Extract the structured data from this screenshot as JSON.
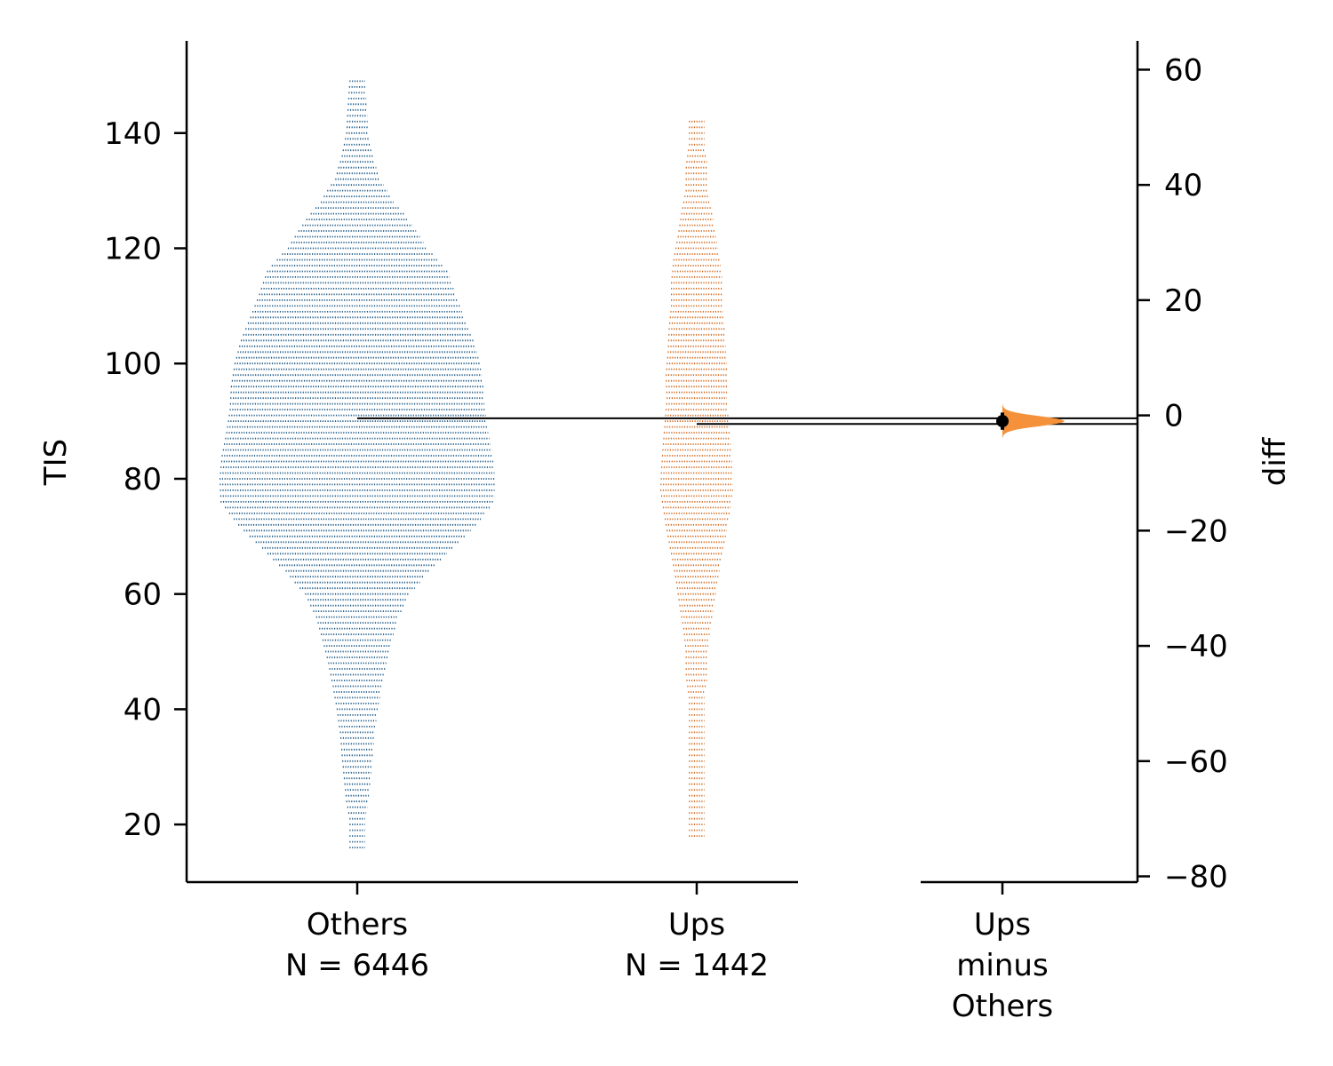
{
  "chart_data": {
    "type": "scatter",
    "subtype": "estimation-swarm",
    "title": "",
    "ylabel": "TIS",
    "y2label": "diff",
    "ylim": [
      10,
      156
    ],
    "y2lim": [
      -81,
      65
    ],
    "yticks": [
      20,
      40,
      60,
      80,
      100,
      120,
      140
    ],
    "y2ticks": [
      -80,
      -60,
      -40,
      -20,
      0,
      20,
      40,
      60
    ],
    "grid": false,
    "legend": "none",
    "groups": [
      {
        "name": "Others",
        "label_lines": [
          "Others",
          "N = 6446"
        ],
        "n": 6446,
        "color": "#1f5a87",
        "mean": 90.5,
        "min": 16,
        "max": 149,
        "distribution": [
          {
            "y": 16,
            "count": 1
          },
          {
            "y": 18,
            "count": 1
          },
          {
            "y": 21,
            "count": 1
          },
          {
            "y": 24,
            "count": 2
          },
          {
            "y": 28,
            "count": 3
          },
          {
            "y": 32,
            "count": 4
          },
          {
            "y": 36,
            "count": 5
          },
          {
            "y": 40,
            "count": 7
          },
          {
            "y": 44,
            "count": 10
          },
          {
            "y": 48,
            "count": 14
          },
          {
            "y": 52,
            "count": 20
          },
          {
            "y": 56,
            "count": 28
          },
          {
            "y": 60,
            "count": 45
          },
          {
            "y": 64,
            "count": 85
          },
          {
            "y": 68,
            "count": 150
          },
          {
            "y": 72,
            "count": 235
          },
          {
            "y": 76,
            "count": 310
          },
          {
            "y": 80,
            "count": 315
          },
          {
            "y": 84,
            "count": 305
          },
          {
            "y": 88,
            "count": 285
          },
          {
            "y": 92,
            "count": 270
          },
          {
            "y": 96,
            "count": 265
          },
          {
            "y": 100,
            "count": 250
          },
          {
            "y": 104,
            "count": 225
          },
          {
            "y": 108,
            "count": 190
          },
          {
            "y": 112,
            "count": 160
          },
          {
            "y": 116,
            "count": 135
          },
          {
            "y": 120,
            "count": 80
          },
          {
            "y": 124,
            "count": 50
          },
          {
            "y": 128,
            "count": 22
          },
          {
            "y": 132,
            "count": 8
          },
          {
            "y": 136,
            "count": 4
          },
          {
            "y": 140,
            "count": 2
          },
          {
            "y": 149,
            "count": 1
          }
        ]
      },
      {
        "name": "Ups",
        "label_lines": [
          "Ups",
          "N = 1442"
        ],
        "n": 1442,
        "color": "#d2691e",
        "mean": 89.5,
        "min": 18,
        "max": 142,
        "distribution": [
          {
            "y": 18,
            "count": 1
          },
          {
            "y": 20,
            "count": 1
          },
          {
            "y": 30,
            "count": 1
          },
          {
            "y": 34,
            "count": 1
          },
          {
            "y": 38,
            "count": 1
          },
          {
            "y": 42,
            "count": 1
          },
          {
            "y": 46,
            "count": 2
          },
          {
            "y": 50,
            "count": 2
          },
          {
            "y": 54,
            "count": 3
          },
          {
            "y": 58,
            "count": 5
          },
          {
            "y": 62,
            "count": 7
          },
          {
            "y": 66,
            "count": 10
          },
          {
            "y": 70,
            "count": 14
          },
          {
            "y": 74,
            "count": 18
          },
          {
            "y": 78,
            "count": 22
          },
          {
            "y": 82,
            "count": 21
          },
          {
            "y": 86,
            "count": 19
          },
          {
            "y": 90,
            "count": 17
          },
          {
            "y": 94,
            "count": 15
          },
          {
            "y": 98,
            "count": 16
          },
          {
            "y": 102,
            "count": 14
          },
          {
            "y": 106,
            "count": 13
          },
          {
            "y": 110,
            "count": 11
          },
          {
            "y": 114,
            "count": 11
          },
          {
            "y": 118,
            "count": 9
          },
          {
            "y": 122,
            "count": 6
          },
          {
            "y": 126,
            "count": 4
          },
          {
            "y": 130,
            "count": 2
          },
          {
            "y": 134,
            "count": 2
          },
          {
            "y": 138,
            "count": 1
          },
          {
            "y": 142,
            "count": 1
          }
        ]
      }
    ],
    "contrast": {
      "label_lines": [
        "Ups",
        "minus",
        "Others"
      ],
      "color": "#f4913a",
      "mean_diff": -1.0,
      "ci": [
        -2.5,
        0.5
      ]
    }
  }
}
